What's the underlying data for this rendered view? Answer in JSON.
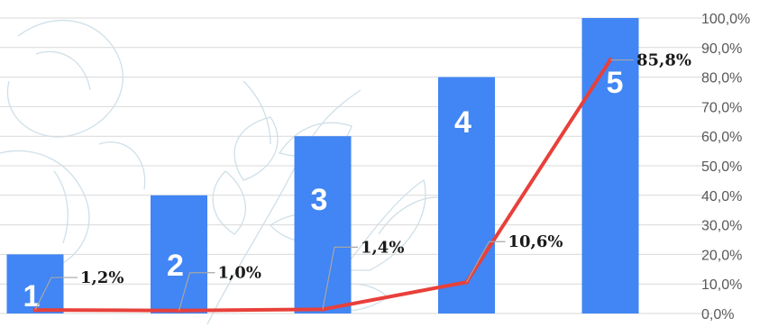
{
  "chart_data": {
    "type": "bar",
    "categories": [
      "1",
      "2",
      "3",
      "4",
      "5"
    ],
    "series": [
      {
        "type": "bar",
        "values": [
          20,
          40,
          60,
          80,
          100
        ],
        "color": "#4285F4"
      },
      {
        "type": "line",
        "values": [
          1.2,
          1.0,
          1.4,
          10.6,
          85.8
        ],
        "data_labels": [
          "1,2%",
          "1,0%",
          "1,4%",
          "10,6%",
          "85,8%"
        ],
        "color": "#E8403A"
      }
    ],
    "bar_labels": [
      "1",
      "2",
      "3",
      "4",
      "5"
    ],
    "y_ticks": [
      "0,0%",
      "10,0%",
      "20,0%",
      "30,0%",
      "40,0%",
      "50,0%",
      "60,0%",
      "70,0%",
      "80,0%",
      "90,0%",
      "100,0%"
    ],
    "ylim": [
      0,
      100
    ],
    "y_axis_position": "right",
    "grid": true,
    "gridline_color": "#d9d9d9",
    "background_motif": "line-drawn leaves and flower, light blue"
  }
}
